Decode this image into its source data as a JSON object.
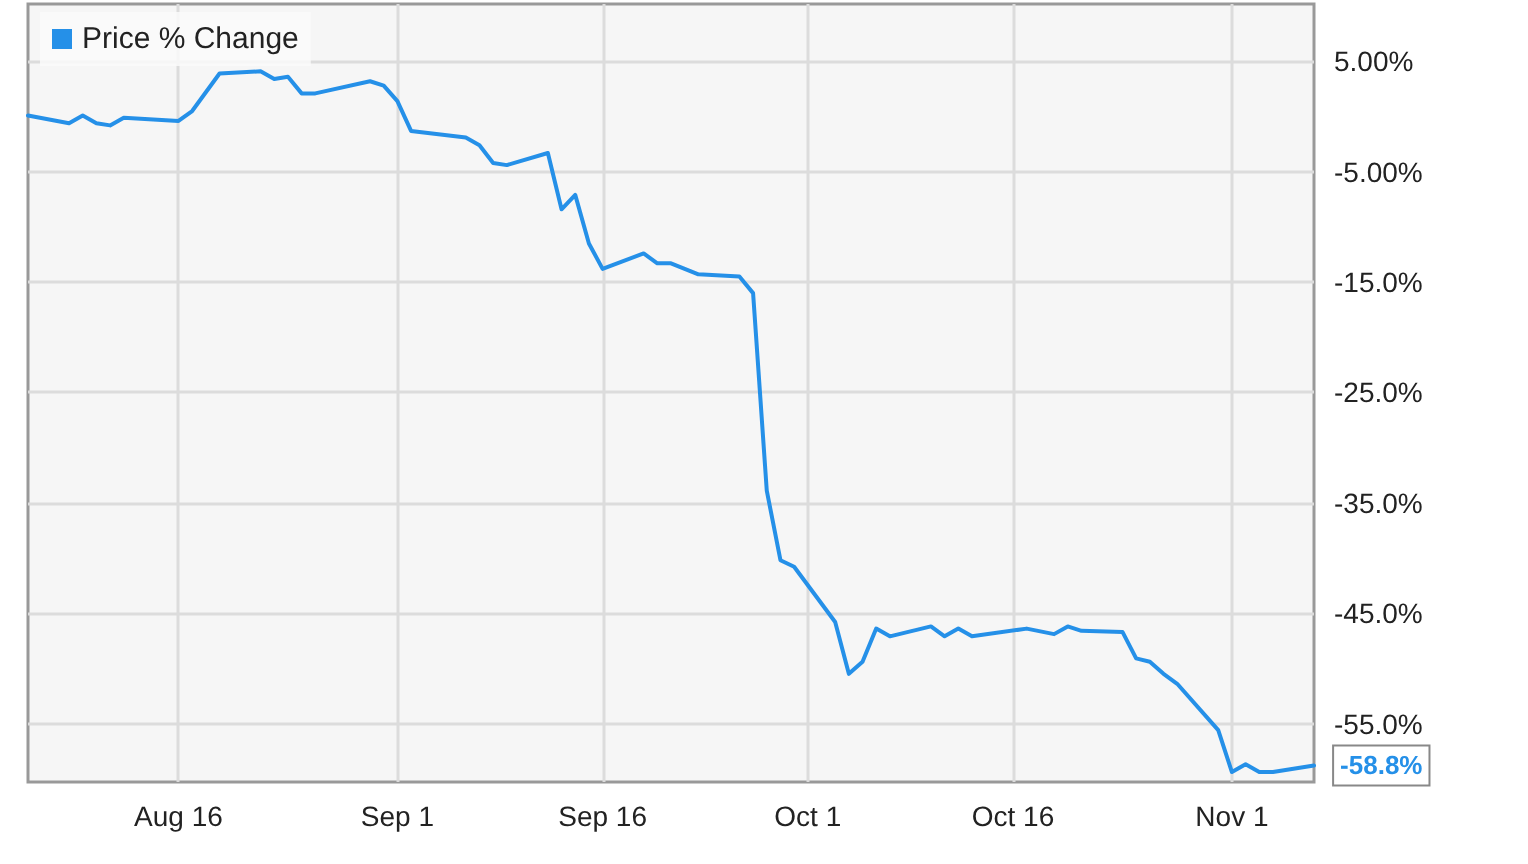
{
  "chart_data": {
    "type": "line",
    "x": [
      "--08-05",
      "--08-08",
      "--08-09",
      "--08-10",
      "--08-11",
      "--08-12",
      "--08-16",
      "--08-17",
      "--08-19",
      "--08-22",
      "--08-23",
      "--08-24",
      "--08-25",
      "--08-26",
      "--08-30",
      "--08-31",
      "--09-01",
      "--09-02",
      "--09-06",
      "--09-07",
      "--09-08",
      "--09-09",
      "--09-12",
      "--09-13",
      "--09-14",
      "--09-15",
      "--09-16",
      "--09-19",
      "--09-20",
      "--09-21",
      "--09-23",
      "--09-26",
      "--09-27",
      "--09-28",
      "--09-29",
      "--09-30",
      "--10-03",
      "--10-04",
      "--10-05",
      "--10-06",
      "--10-07",
      "--10-10",
      "--10-11",
      "--10-12",
      "--10-13",
      "--10-17",
      "--10-19",
      "--10-20",
      "--10-21",
      "--10-24",
      "--10-25",
      "--10-26",
      "--10-27",
      "--10-28",
      "--10-31",
      "--11-01",
      "--11-02",
      "--11-03",
      "--11-04",
      "--11-07"
    ],
    "series": [
      {
        "name": "Price % Change",
        "color": "#2590e8",
        "values": [
          0.1,
          -0.6,
          0.1,
          -0.6,
          -0.8,
          -0.1,
          -0.4,
          0.5,
          3.9,
          4.1,
          3.4,
          3.6,
          2.1,
          2.1,
          3.2,
          2.8,
          1.4,
          -1.3,
          -1.9,
          -2.6,
          -4.2,
          -4.4,
          -3.3,
          -8.4,
          -7.1,
          -11.5,
          -13.8,
          -12.4,
          -13.3,
          -13.3,
          -14.3,
          -14.5,
          -16.0,
          -33.9,
          -40.2,
          -40.8,
          -45.8,
          -50.5,
          -49.4,
          -46.4,
          -47.1,
          -46.2,
          -47.1,
          -46.4,
          -47.1,
          -46.4,
          -46.9,
          -46.2,
          -46.6,
          -46.7,
          -49.1,
          -49.4,
          -50.5,
          -51.4,
          -55.6,
          -59.4,
          -58.7,
          -59.4,
          -59.4,
          -58.8
        ],
        "value_labels": [
          null,
          null,
          null,
          null,
          null,
          null,
          null,
          null,
          null,
          null,
          null,
          null,
          null,
          null,
          null,
          null,
          null,
          null,
          null,
          null,
          null,
          null,
          null,
          null,
          null,
          null,
          null,
          null,
          null,
          null,
          null,
          null,
          null,
          null,
          null,
          null,
          null,
          null,
          null,
          null,
          null,
          null,
          null,
          null,
          null,
          null,
          null,
          null,
          null,
          null,
          null,
          null,
          null,
          null,
          null,
          null,
          null,
          null,
          null,
          "-58.8%"
        ]
      }
    ],
    "xlim": [
      "--08-05",
      "--11-07"
    ],
    "xticks": [
      {
        "value": "--08-16",
        "label": "Aug 16"
      },
      {
        "value": "--09-01",
        "label": "Sep 1"
      },
      {
        "value": "--09-16",
        "label": "Sep 16"
      },
      {
        "value": "--10-01",
        "label": "Oct 1"
      },
      {
        "value": "--10-16",
        "label": "Oct 16"
      },
      {
        "value": "--11-01",
        "label": "Nov 1"
      }
    ],
    "ylim": [
      -60.3,
      10.2
    ],
    "yticks": [
      {
        "value": 5,
        "label": "5.00%"
      },
      {
        "value": -5,
        "label": "-5.00%"
      },
      {
        "value": -15,
        "label": "-15.0%"
      },
      {
        "value": -25,
        "label": "-25.0%"
      },
      {
        "value": -35,
        "label": "-35.0%"
      },
      {
        "value": -45,
        "label": "-45.0%"
      },
      {
        "value": -55,
        "label": "-55.0%"
      }
    ],
    "grid": true,
    "legend": "top left",
    "marker": "none",
    "line_style": "solid"
  }
}
